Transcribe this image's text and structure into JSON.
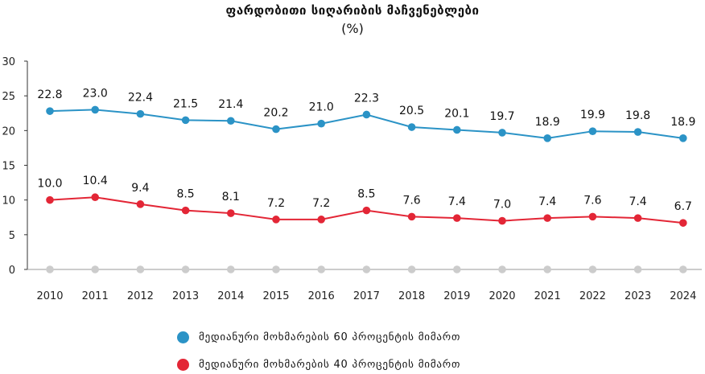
{
  "chart_data": {
    "type": "line",
    "title": "ფარდობითი სიღარიბის მაჩვენებლები",
    "subtitle": "(%)",
    "categories": [
      "2010",
      "2011",
      "2012",
      "2013",
      "2014",
      "2015",
      "2016",
      "2017",
      "2018",
      "2019",
      "2020",
      "2021",
      "2022",
      "2023",
      "2024"
    ],
    "series": [
      {
        "name": "მედიანური მოხმარების 60 პროცენტის მიმართ",
        "color": "#2b93c6",
        "values": [
          22.8,
          23.0,
          22.4,
          21.5,
          21.4,
          20.2,
          21.0,
          22.3,
          20.5,
          20.1,
          19.7,
          18.9,
          19.9,
          19.8,
          18.9
        ],
        "labels": [
          "22.8",
          "23.0",
          "22.4",
          "21.5",
          "21.4",
          "20.2",
          "21.0",
          "22.3",
          "20.5",
          "20.1",
          "19.7",
          "18.9",
          "19.9",
          "19.8",
          "18.9"
        ]
      },
      {
        "name": "მედიანური მოხმარების 40 პროცენტის მიმართ",
        "color": "#e32636",
        "values": [
          10.0,
          10.4,
          9.4,
          8.5,
          8.1,
          7.2,
          7.2,
          8.5,
          7.6,
          7.4,
          7.0,
          7.4,
          7.6,
          7.4,
          6.7
        ],
        "labels": [
          "10.0",
          "10.4",
          "9.4",
          "8.5",
          "8.1",
          "7.2",
          "7.2",
          "8.5",
          "7.6",
          "7.4",
          "7.0",
          "7.4",
          "7.6",
          "7.4",
          "6.7"
        ]
      },
      {
        "color": "#cccccc",
        "values": [
          0,
          0,
          0,
          0,
          0,
          0,
          0,
          0,
          0,
          0,
          0,
          0,
          0,
          0,
          0
        ]
      }
    ],
    "yticks": [
      "0",
      "5",
      "10",
      "15",
      "20",
      "25",
      "30"
    ],
    "ylim": [
      0,
      30
    ],
    "grid": false,
    "legend": "bottom"
  }
}
